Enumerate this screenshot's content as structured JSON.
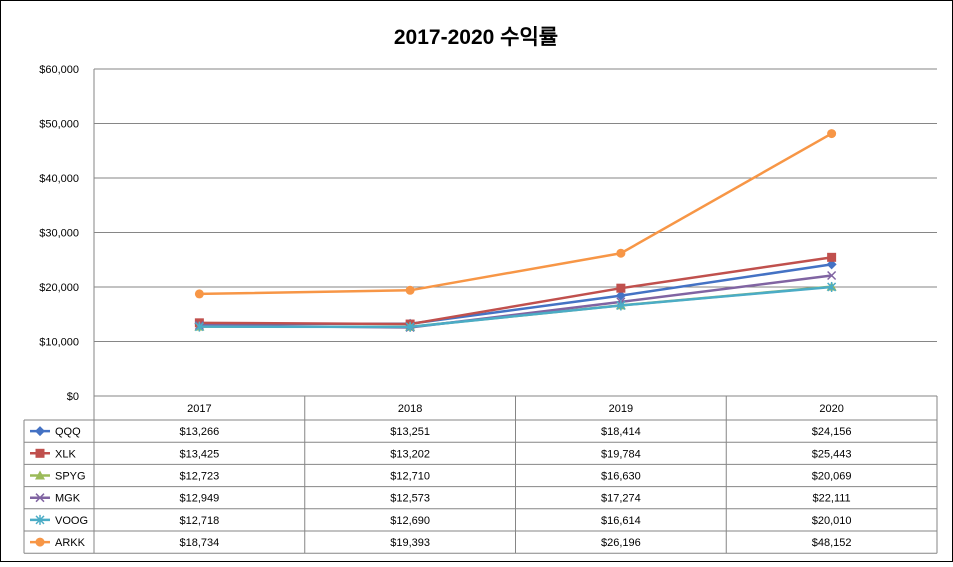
{
  "chart_data": {
    "type": "line",
    "title": "2017-2020 수익률",
    "xlabel": "",
    "ylabel": "",
    "categories": [
      "2017",
      "2018",
      "2019",
      "2020"
    ],
    "ylim": [
      0,
      60000
    ],
    "yticks": [
      0,
      10000,
      20000,
      30000,
      40000,
      50000,
      60000
    ],
    "ytick_labels": [
      "$0",
      "$10,000",
      "$20,000",
      "$30,000",
      "$40,000",
      "$50,000",
      "$60,000"
    ],
    "grid": true,
    "legend": "data-table-below",
    "series": [
      {
        "name": "QQQ",
        "color": "#4472C4",
        "marker": "diamond",
        "values": [
          13266,
          13251,
          18414,
          24156
        ],
        "labels": [
          "$13,266",
          "$13,251",
          "$18,414",
          "$24,156"
        ]
      },
      {
        "name": "XLK",
        "color": "#C0504D",
        "marker": "square",
        "values": [
          13425,
          13202,
          19784,
          25443
        ],
        "labels": [
          "$13,425",
          "$13,202",
          "$19,784",
          "$25,443"
        ]
      },
      {
        "name": "SPYG",
        "color": "#9BBB59",
        "marker": "triangle",
        "values": [
          12723,
          12710,
          16630,
          20069
        ],
        "labels": [
          "$12,723",
          "$12,710",
          "$16,630",
          "$20,069"
        ]
      },
      {
        "name": "MGK",
        "color": "#8064A2",
        "marker": "x",
        "values": [
          12949,
          12573,
          17274,
          22111
        ],
        "labels": [
          "$12,949",
          "$12,573",
          "$17,274",
          "$22,111"
        ]
      },
      {
        "name": "VOOG",
        "color": "#4BACC6",
        "marker": "star",
        "values": [
          12718,
          12690,
          16614,
          20010
        ],
        "labels": [
          "$12,718",
          "$12,690",
          "$16,614",
          "$20,010"
        ]
      },
      {
        "name": "ARKK",
        "color": "#F79646",
        "marker": "circle",
        "values": [
          18734,
          19393,
          26196,
          48152
        ],
        "labels": [
          "$18,734",
          "$19,393",
          "$26,196",
          "$48,152"
        ]
      }
    ]
  }
}
